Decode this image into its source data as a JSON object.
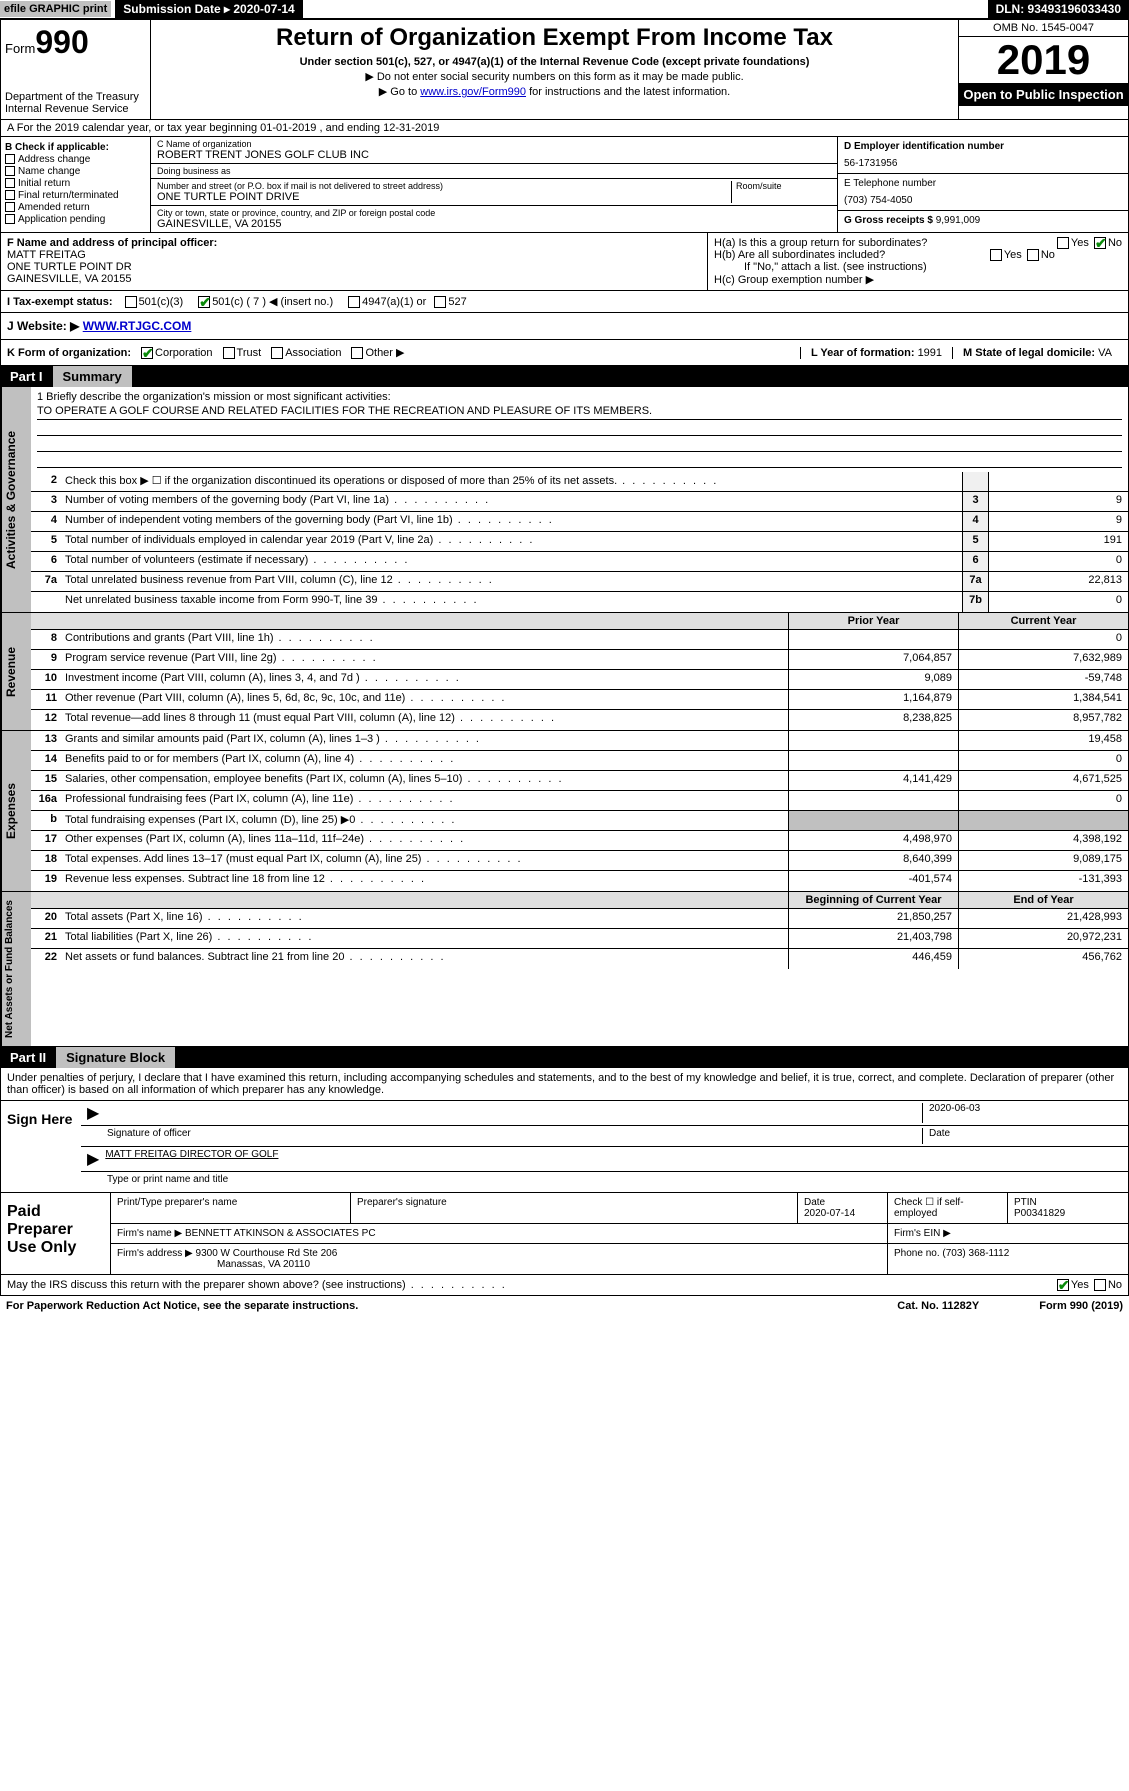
{
  "topbar": {
    "efile": "efile GRAPHIC print",
    "sub_label": "Submission Date ▸ 2020-07-14",
    "dln": "DLN: 93493196033430"
  },
  "header": {
    "form_prefix": "Form",
    "form_num": "990",
    "dept": "Department of the Treasury\nInternal Revenue Service",
    "title": "Return of Organization Exempt From Income Tax",
    "sub": "Under section 501(c), 527, or 4947(a)(1) of the Internal Revenue Code (except private foundations)",
    "note1": "▶ Do not enter social security numbers on this form as it may be made public.",
    "note2_pre": "▶ Go to ",
    "note2_link": "www.irs.gov/Form990",
    "note2_post": " for instructions and the latest information.",
    "omb": "OMB No. 1545-0047",
    "year": "2019",
    "open": "Open to Public Inspection"
  },
  "rowA": "A  For the 2019 calendar year, or tax year beginning 01-01-2019   , and ending 12-31-2019",
  "colB": {
    "lbl": "B Check if applicable:",
    "items": [
      "Address change",
      "Name change",
      "Initial return",
      "Final return/terminated",
      "Amended return",
      "Application pending"
    ]
  },
  "colC": {
    "name_lbl": "C Name of organization",
    "name": "ROBERT TRENT JONES GOLF CLUB INC",
    "dba_lbl": "Doing business as",
    "dba": "",
    "addr_lbl": "Number and street (or P.O. box if mail is not delivered to street address)",
    "room_lbl": "Room/suite",
    "addr": "ONE TURTLE POINT DRIVE",
    "city_lbl": "City or town, state or province, country, and ZIP or foreign postal code",
    "city": "GAINESVILLE, VA  20155"
  },
  "colD": {
    "ein_lbl": "D Employer identification number",
    "ein": "56-1731956",
    "phone_lbl": "E Telephone number",
    "phone": "(703) 754-4050",
    "gross_lbl": "G Gross receipts $",
    "gross": "9,991,009"
  },
  "rowF": {
    "lbl": "F  Name and address of principal officer:",
    "name": "MATT FREITAG",
    "addr1": "ONE TURTLE POINT DR",
    "addr2": "GAINESVILLE, VA  20155"
  },
  "rowH": {
    "ha": "H(a)  Is this a group return for subordinates?",
    "hb": "H(b)  Are all subordinates included?",
    "hb_note": "If \"No,\" attach a list. (see instructions)",
    "hc": "H(c)  Group exemption number ▶"
  },
  "rowI": {
    "lbl": "I  Tax-exempt status:",
    "o1": "501(c)(3)",
    "o2": "501(c) ( 7 ) ◀ (insert no.)",
    "o3": "4947(a)(1) or",
    "o4": "527"
  },
  "rowJ": {
    "lbl": "J  Website: ▶",
    "val": "WWW.RTJGC.COM"
  },
  "rowK": {
    "lbl": "K Form of organization:",
    "opts": [
      "Corporation",
      "Trust",
      "Association",
      "Other ▶"
    ],
    "l_lbl": "L Year of formation:",
    "l_val": "1991",
    "m_lbl": "M State of legal domicile:",
    "m_val": "VA"
  },
  "part1": {
    "lbl": "Part I",
    "title": "Summary"
  },
  "mission": {
    "q": "1  Briefly describe the organization's mission or most significant activities:",
    "a": "TO OPERATE A GOLF COURSE AND RELATED FACILITIES FOR THE RECREATION AND PLEASURE OF ITS MEMBERS."
  },
  "gov_rows": [
    {
      "n": "2",
      "d": "Check this box ▶ ☐  if the organization discontinued its operations or disposed of more than 25% of its net assets.",
      "b": "",
      "v": ""
    },
    {
      "n": "3",
      "d": "Number of voting members of the governing body (Part VI, line 1a)",
      "b": "3",
      "v": "9"
    },
    {
      "n": "4",
      "d": "Number of independent voting members of the governing body (Part VI, line 1b)",
      "b": "4",
      "v": "9"
    },
    {
      "n": "5",
      "d": "Total number of individuals employed in calendar year 2019 (Part V, line 2a)",
      "b": "5",
      "v": "191"
    },
    {
      "n": "6",
      "d": "Total number of volunteers (estimate if necessary)",
      "b": "6",
      "v": "0"
    },
    {
      "n": "7a",
      "d": "Total unrelated business revenue from Part VIII, column (C), line 12",
      "b": "7a",
      "v": "22,813"
    },
    {
      "n": "",
      "d": "Net unrelated business taxable income from Form 990-T, line 39",
      "b": "7b",
      "v": "0"
    }
  ],
  "rev_hdr": {
    "prior": "Prior Year",
    "current": "Current Year"
  },
  "rev_rows": [
    {
      "n": "8",
      "d": "Contributions and grants (Part VIII, line 1h)",
      "p": "",
      "c": "0"
    },
    {
      "n": "9",
      "d": "Program service revenue (Part VIII, line 2g)",
      "p": "7,064,857",
      "c": "7,632,989"
    },
    {
      "n": "10",
      "d": "Investment income (Part VIII, column (A), lines 3, 4, and 7d )",
      "p": "9,089",
      "c": "-59,748"
    },
    {
      "n": "11",
      "d": "Other revenue (Part VIII, column (A), lines 5, 6d, 8c, 9c, 10c, and 11e)",
      "p": "1,164,879",
      "c": "1,384,541"
    },
    {
      "n": "12",
      "d": "Total revenue—add lines 8 through 11 (must equal Part VIII, column (A), line 12)",
      "p": "8,238,825",
      "c": "8,957,782"
    }
  ],
  "exp_rows": [
    {
      "n": "13",
      "d": "Grants and similar amounts paid (Part IX, column (A), lines 1–3 )",
      "p": "",
      "c": "19,458"
    },
    {
      "n": "14",
      "d": "Benefits paid to or for members (Part IX, column (A), line 4)",
      "p": "",
      "c": "0"
    },
    {
      "n": "15",
      "d": "Salaries, other compensation, employee benefits (Part IX, column (A), lines 5–10)",
      "p": "4,141,429",
      "c": "4,671,525"
    },
    {
      "n": "16a",
      "d": "Professional fundraising fees (Part IX, column (A), line 11e)",
      "p": "",
      "c": "0"
    },
    {
      "n": "b",
      "d": "Total fundraising expenses (Part IX, column (D), line 25) ▶0",
      "p": "",
      "c": "",
      "gray": true
    },
    {
      "n": "17",
      "d": "Other expenses (Part IX, column (A), lines 11a–11d, 11f–24e)",
      "p": "4,498,970",
      "c": "4,398,192"
    },
    {
      "n": "18",
      "d": "Total expenses. Add lines 13–17 (must equal Part IX, column (A), line 25)",
      "p": "8,640,399",
      "c": "9,089,175"
    },
    {
      "n": "19",
      "d": "Revenue less expenses. Subtract line 18 from line 12",
      "p": "-401,574",
      "c": "-131,393"
    }
  ],
  "net_hdr": {
    "prior": "Beginning of Current Year",
    "current": "End of Year"
  },
  "net_rows": [
    {
      "n": "20",
      "d": "Total assets (Part X, line 16)",
      "p": "21,850,257",
      "c": "21,428,993"
    },
    {
      "n": "21",
      "d": "Total liabilities (Part X, line 26)",
      "p": "21,403,798",
      "c": "20,972,231"
    },
    {
      "n": "22",
      "d": "Net assets or fund balances. Subtract line 21 from line 20",
      "p": "446,459",
      "c": "456,762"
    }
  ],
  "vlabels": {
    "gov": "Activities & Governance",
    "rev": "Revenue",
    "exp": "Expenses",
    "net": "Net Assets or Fund Balances"
  },
  "part2": {
    "lbl": "Part II",
    "title": "Signature Block"
  },
  "perjury": "Under penalties of perjury, I declare that I have examined this return, including accompanying schedules and statements, and to the best of my knowledge and belief, it is true, correct, and complete. Declaration of preparer (other than officer) is based on all information of which preparer has any knowledge.",
  "sign": {
    "here": "Sign Here",
    "sig_lbl": "Signature of officer",
    "date": "2020-06-03",
    "date_lbl": "Date",
    "name": "MATT FREITAG  DIRECTOR OF GOLF",
    "name_lbl": "Type or print name and title"
  },
  "paid": {
    "lbl": "Paid Preparer Use Only",
    "h1": "Print/Type preparer's name",
    "h2": "Preparer's signature",
    "h3": "Date",
    "h3v": "2020-07-14",
    "h4": "Check ☐ if self-employed",
    "h5": "PTIN",
    "h5v": "P00341829",
    "firm_lbl": "Firm's name    ▶",
    "firm": "BENNETT ATKINSON & ASSOCIATES PC",
    "ein_lbl": "Firm's EIN ▶",
    "addr_lbl": "Firm's address ▶",
    "addr": "9300 W Courthouse Rd Ste 206",
    "addr2": "Manassas, VA  20110",
    "phone_lbl": "Phone no.",
    "phone": "(703) 368-1112"
  },
  "discuss": "May the IRS discuss this return with the preparer shown above? (see instructions)",
  "footer": {
    "left": "For Paperwork Reduction Act Notice, see the separate instructions.",
    "mid": "Cat. No. 11282Y",
    "right": "Form 990 (2019)"
  },
  "yesno": {
    "yes": "Yes",
    "no": "No"
  }
}
